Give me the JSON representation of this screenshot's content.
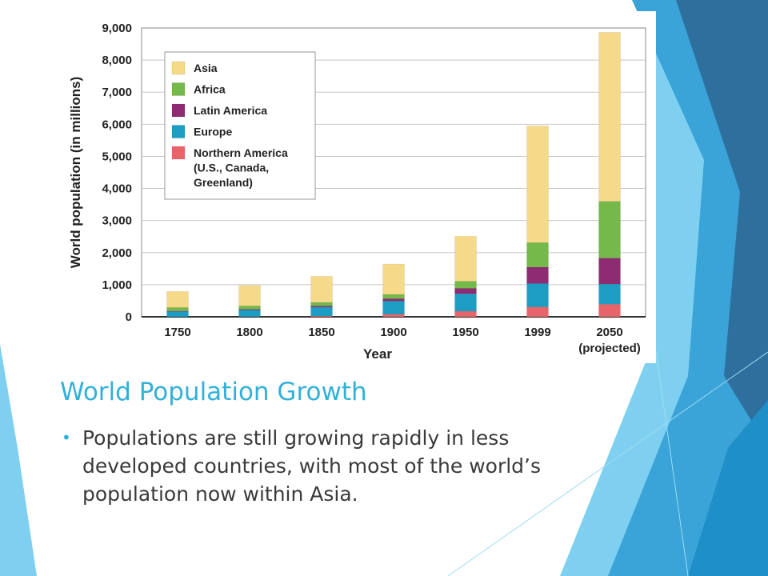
{
  "slide": {
    "title": "World Population Growth",
    "bullets": [
      "Populations are still growing rapidly in less developed countries, with most of the world’s population now within Asia."
    ]
  },
  "colors": {
    "title": "#33b0d8",
    "Asia": "#f7d98a",
    "Africa": "#74b94a",
    "Latin America": "#8e2b72",
    "Europe": "#1c9ec4",
    "Northern America": "#e9646a",
    "grid": "#c8c8c8",
    "deco_dark": "#2e6f9e",
    "deco_mid": "#3aa3d8",
    "deco_light": "#7fd0f0"
  },
  "chart_data": {
    "type": "bar",
    "stacked": true,
    "title": "",
    "xlabel": "Year",
    "ylabel": "World population (in millions)",
    "ylim": [
      0,
      9000
    ],
    "yticks": [
      "0",
      "1,000",
      "2,000",
      "3,000",
      "4,000",
      "5,000",
      "6,000",
      "7,000",
      "8,000",
      "9,000"
    ],
    "ytick_values": [
      0,
      1000,
      2000,
      3000,
      4000,
      5000,
      6000,
      7000,
      8000,
      9000
    ],
    "categories": [
      "1750",
      "1800",
      "1850",
      "1900",
      "1950",
      "1999",
      "2050"
    ],
    "category_notes": [
      "",
      "",
      "",
      "",
      "",
      "",
      "(projected)"
    ],
    "grid": true,
    "legend_position": "top-left",
    "legend_labels": [
      "Asia",
      "Africa",
      "Latin America",
      "Europe",
      "Northern America (U.S., Canada, Greenland)"
    ],
    "series": [
      {
        "name": "Northern America",
        "values": [
          2,
          7,
          26,
          82,
          172,
          307,
          392
        ]
      },
      {
        "name": "Europe",
        "values": [
          163,
          203,
          276,
          408,
          547,
          729,
          628
        ]
      },
      {
        "name": "Latin America",
        "values": [
          16,
          24,
          38,
          74,
          167,
          511,
          809
        ]
      },
      {
        "name": "Africa",
        "values": [
          106,
          107,
          111,
          133,
          221,
          767,
          1768
        ]
      },
      {
        "name": "Asia",
        "values": [
          502,
          635,
          809,
          947,
          1402,
          3634,
          5268
        ]
      }
    ]
  }
}
